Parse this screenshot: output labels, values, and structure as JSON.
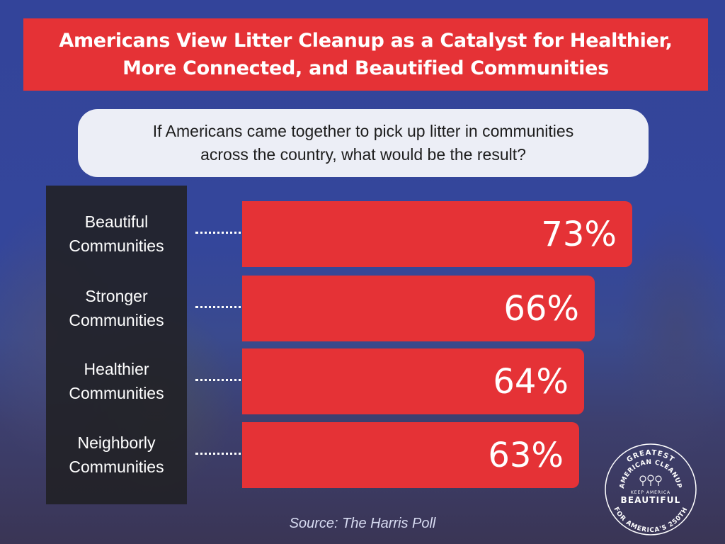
{
  "title": {
    "lines": [
      "Americans View Litter Cleanup as a Catalyst for Healthier,",
      "More Connected, and Beautified Communities"
    ]
  },
  "question": {
    "lines": [
      "If Americans came together to pick up litter in communities",
      "across the country, what would be the result?"
    ]
  },
  "chart_data": {
    "type": "bar",
    "orientation": "horizontal",
    "categories": [
      [
        "Beautiful",
        "Communities"
      ],
      [
        "Stronger",
        "Communities"
      ],
      [
        "Healthier",
        "Communities"
      ],
      [
        "Neighborly",
        "Communities"
      ]
    ],
    "values": [
      73,
      66,
      64,
      63
    ],
    "value_labels": [
      "73%",
      "66%",
      "64%",
      "63%"
    ],
    "unit": "%",
    "grid": false,
    "colors": {
      "bar": "#e53236",
      "label_panel": "#212126",
      "text": "#ffffff"
    }
  },
  "source": "Source: The Harris Poll",
  "logo": {
    "top_text": "GREATEST",
    "middle_text": "AMERICAN CLEANUP",
    "small_text": "KEEP AMERICA",
    "big_text": "BEAUTIFUL",
    "bottom_text": "FOR AMERICA'S 250TH"
  }
}
